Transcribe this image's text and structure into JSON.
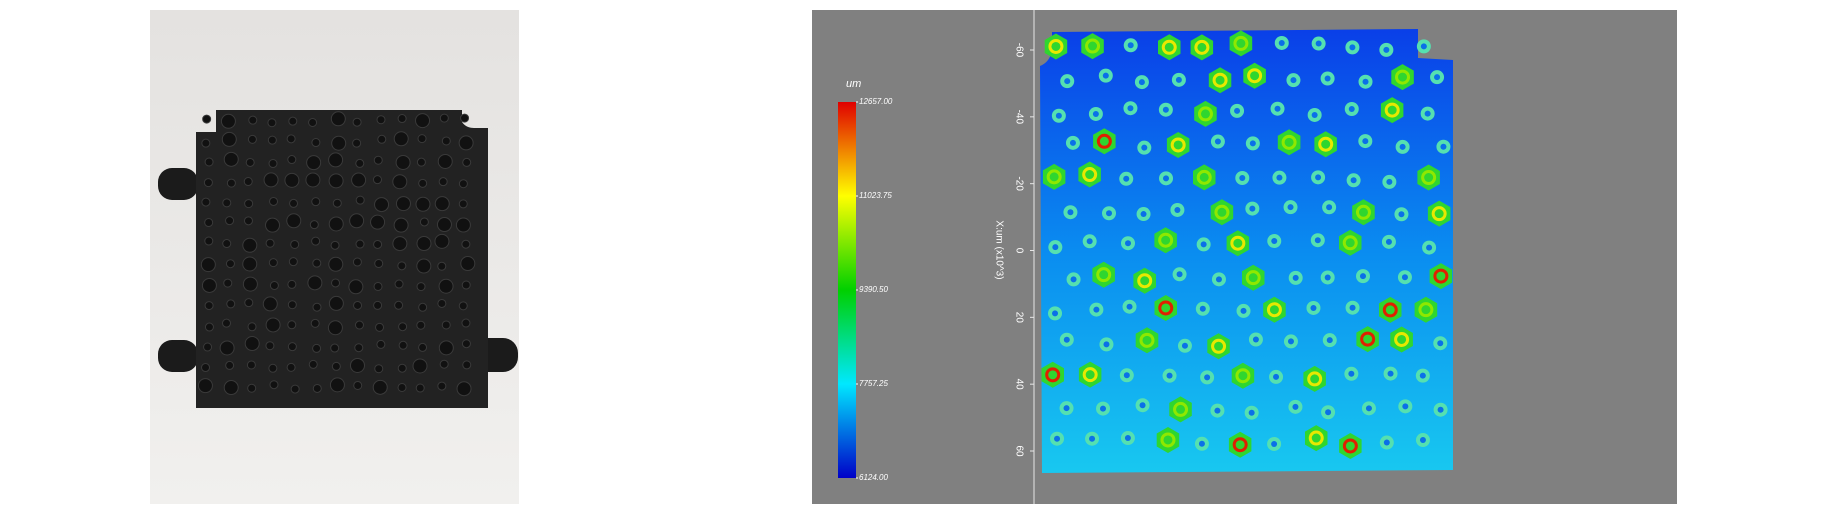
{
  "height_map": {
    "unit": "um",
    "colorbar": {
      "ticks": [
        {
          "value": 12657,
          "label": "12657.00"
        },
        {
          "value": 11023.75,
          "label": "11023.75"
        },
        {
          "value": 9390.5,
          "label": "9390.50"
        },
        {
          "value": 7757.25,
          "label": "7757.25"
        },
        {
          "value": 6124,
          "label": "6124.00"
        }
      ]
    },
    "axis": {
      "label": "X:um (x10^3)",
      "ticks": [
        -60,
        -40,
        -20,
        0,
        20,
        40,
        60
      ]
    }
  }
}
